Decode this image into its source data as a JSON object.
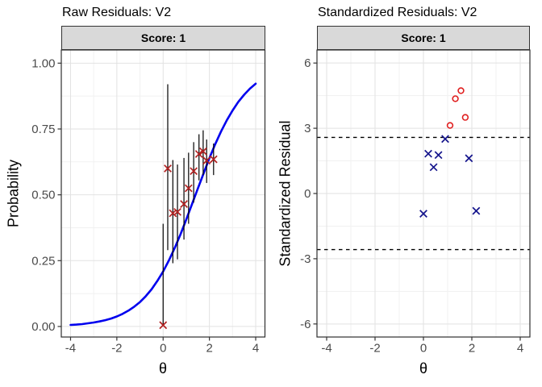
{
  "style": {
    "background": "#FFFFFF",
    "strip_bg": "#D9D9D9",
    "strip_border": "#333333",
    "panel_border": "#2E2E2E",
    "grid_major": "#E2E2E2",
    "grid_minor": "#F1F1F1",
    "tick_color": "#333333",
    "tick_label_color": "#4A4A4A"
  },
  "chart_data": [
    {
      "panel": "left",
      "type": "line",
      "title": "Raw Residuals: V2",
      "facet_label": "Score: 1",
      "xlabel": "θ",
      "ylabel": "Probability",
      "xlim": [
        -4.4,
        4.4
      ],
      "ylim": [
        -0.04,
        1.05
      ],
      "grid": true,
      "xticks": {
        "values": [
          -4,
          -2,
          0,
          2,
          4
        ],
        "labels": [
          "-4",
          "-2",
          "0",
          "2",
          "4"
        ]
      },
      "yticks": {
        "values": [
          0,
          0.25,
          0.5,
          0.75,
          1
        ],
        "labels": [
          "0.00",
          "0.25",
          "0.50",
          "0.75",
          "1.00"
        ]
      },
      "xminor": [
        -3,
        -1,
        1,
        3
      ],
      "yminor": [
        0.125,
        0.375,
        0.625,
        0.875
      ],
      "curve": {
        "name": "model-probability-curve",
        "color": "#0000EE",
        "points": [
          [
            -4,
            0.006
          ],
          [
            -3.75,
            0.007
          ],
          [
            -3.5,
            0.009
          ],
          [
            -3.25,
            0.012
          ],
          [
            -3,
            0.015
          ],
          [
            -2.75,
            0.019
          ],
          [
            -2.5,
            0.024
          ],
          [
            -2.25,
            0.03
          ],
          [
            -2,
            0.038
          ],
          [
            -1.75,
            0.048
          ],
          [
            -1.5,
            0.06
          ],
          [
            -1.25,
            0.075
          ],
          [
            -1,
            0.093
          ],
          [
            -0.75,
            0.115
          ],
          [
            -0.5,
            0.141
          ],
          [
            -0.25,
            0.173
          ],
          [
            0,
            0.209
          ],
          [
            0.25,
            0.251
          ],
          [
            0.5,
            0.298
          ],
          [
            0.75,
            0.35
          ],
          [
            1,
            0.406
          ],
          [
            1.25,
            0.465
          ],
          [
            1.5,
            0.524
          ],
          [
            1.75,
            0.582
          ],
          [
            2,
            0.639
          ],
          [
            2.25,
            0.692
          ],
          [
            2.5,
            0.74
          ],
          [
            2.75,
            0.783
          ],
          [
            3,
            0.82
          ],
          [
            3.25,
            0.853
          ],
          [
            3.5,
            0.88
          ],
          [
            3.75,
            0.903
          ],
          [
            4,
            0.922
          ]
        ]
      },
      "observed": {
        "name": "observed-proportions",
        "marker": "x",
        "color": "#B22222",
        "errorbar_color": "#000000",
        "points": [
          {
            "theta": 0.0,
            "p": 0.005,
            "lo": 0.005,
            "hi": 0.39
          },
          {
            "theta": 0.2,
            "p": 0.6,
            "lo": 0.29,
            "hi": 0.92
          },
          {
            "theta": 0.42,
            "p": 0.43,
            "lo": 0.24,
            "hi": 0.632
          },
          {
            "theta": 0.62,
            "p": 0.435,
            "lo": 0.255,
            "hi": 0.615
          },
          {
            "theta": 0.9,
            "p": 0.465,
            "lo": 0.33,
            "hi": 0.64
          },
          {
            "theta": 1.1,
            "p": 0.525,
            "lo": 0.39,
            "hi": 0.66
          },
          {
            "theta": 1.32,
            "p": 0.59,
            "lo": 0.47,
            "hi": 0.7
          },
          {
            "theta": 1.55,
            "p": 0.655,
            "lo": 0.555,
            "hi": 0.73
          },
          {
            "theta": 1.73,
            "p": 0.665,
            "lo": 0.575,
            "hi": 0.745
          },
          {
            "theta": 1.88,
            "p": 0.63,
            "lo": 0.545,
            "hi": 0.71
          },
          {
            "theta": 2.18,
            "p": 0.635,
            "lo": 0.575,
            "hi": 0.695
          }
        ]
      }
    },
    {
      "panel": "right",
      "type": "scatter",
      "title": "Standardized Residuals: V2",
      "facet_label": "Score: 1",
      "xlabel": "θ",
      "ylabel": "Standardized Residual",
      "xlim": [
        -4.4,
        4.4
      ],
      "ylim": [
        -6.6,
        6.6
      ],
      "grid": true,
      "xticks": {
        "values": [
          -4,
          -2,
          0,
          2,
          4
        ],
        "labels": [
          "-4",
          "-2",
          "0",
          "2",
          "4"
        ]
      },
      "yticks": {
        "values": [
          -6,
          -3,
          0,
          3,
          6
        ],
        "labels": [
          "-6",
          "-3",
          "0",
          "3",
          "6"
        ]
      },
      "xminor": [
        -3,
        -1,
        1,
        3
      ],
      "yminor": [
        -4.5,
        -1.5,
        1.5,
        4.5
      ],
      "cutoff_lines": {
        "values": [
          2.58,
          -2.58
        ],
        "style": "dashed",
        "color": "#000000"
      },
      "groups": [
        {
          "name": "within-cutoff",
          "marker": "x",
          "color": "#14148C",
          "points": [
            [
              0.0,
              -0.93
            ],
            [
              0.2,
              1.83
            ],
            [
              0.42,
              1.21
            ],
            [
              0.62,
              1.77
            ],
            [
              0.9,
              2.51
            ],
            [
              1.88,
              1.62
            ],
            [
              2.18,
              -0.8
            ]
          ]
        },
        {
          "name": "beyond-cutoff",
          "marker": "o",
          "color": "#E02020",
          "points": [
            [
              1.1,
              3.13
            ],
            [
              1.32,
              4.36
            ],
            [
              1.55,
              4.73
            ],
            [
              1.73,
              3.5
            ]
          ]
        }
      ]
    }
  ]
}
